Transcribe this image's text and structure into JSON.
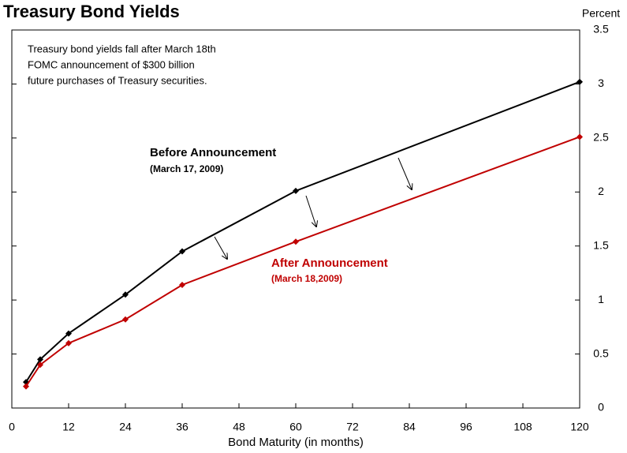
{
  "chart_data": {
    "type": "line",
    "title": "Treasury Bond Yields",
    "y_axis_label": "Percent",
    "x_axis_label": "Bond Maturity (in months)",
    "annotation": [
      "Treasury bond yields fall after March 18th",
      "FOMC announcement of $300 billion",
      "future purchases of Treasury securities."
    ],
    "x": [
      3,
      6,
      12,
      24,
      36,
      60,
      120
    ],
    "series": [
      {
        "name": "Before Announcement",
        "sublabel": "(March 17, 2009)",
        "color": "#000000",
        "values": [
          0.24,
          0.45,
          0.69,
          1.05,
          1.45,
          2.01,
          3.02
        ]
      },
      {
        "name": "After Announcement",
        "sublabel": "(March 18,2009)",
        "color": "#c00000",
        "values": [
          0.2,
          0.4,
          0.6,
          0.82,
          1.14,
          1.54,
          2.51
        ]
      }
    ],
    "xlim": [
      0,
      120
    ],
    "xticks": [
      0,
      12,
      24,
      36,
      48,
      60,
      72,
      84,
      96,
      108,
      120
    ],
    "ylim": [
      0,
      3.5
    ],
    "yticks": [
      0,
      0.5,
      1,
      1.5,
      2,
      2.5,
      3,
      3.5
    ]
  }
}
